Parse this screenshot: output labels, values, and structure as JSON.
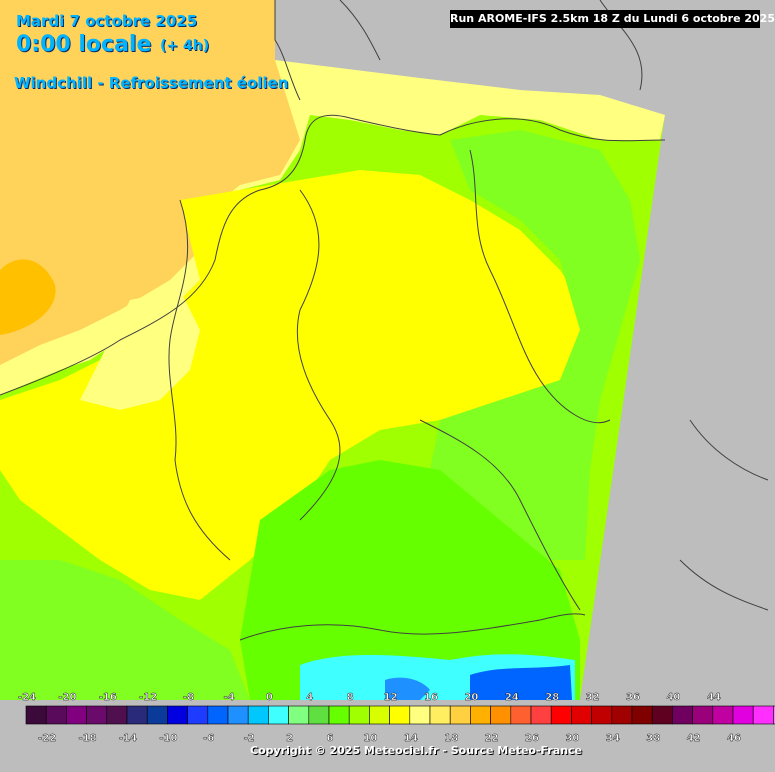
{
  "header": {
    "date": "Mardi 7 octobre 2025",
    "time": "0:00 locale",
    "lead": "(+ 4h)",
    "title": "Windchill - Refroissement éolien",
    "run": "Run AROME-IFS 2.5km 18 Z du Lundi 6 octobre 2025"
  },
  "legend": {
    "top_labels": [
      "-24",
      "-20",
      "-16",
      "-12",
      "-8",
      "-4",
      "0",
      "4",
      "8",
      "12",
      "16",
      "20",
      "24",
      "28",
      "32",
      "36",
      "40",
      "44"
    ],
    "bottom_labels": [
      "-22",
      "-18",
      "-14",
      "-10",
      "-6",
      "-2",
      "2",
      "6",
      "10",
      "14",
      "18",
      "22",
      "26",
      "30",
      "34",
      "38",
      "42",
      "46"
    ],
    "colors": [
      "#3b0a3b",
      "#5a0a5a",
      "#800080",
      "#6a0a6a",
      "#501050",
      "#2a2a7a",
      "#0a3a9a",
      "#0000e0",
      "#1e3cff",
      "#0064ff",
      "#1e90ff",
      "#00c8ff",
      "#40ffff",
      "#80ff80",
      "#60e040",
      "#66ff00",
      "#a0ff00",
      "#d8ff00",
      "#ffff00",
      "#ffff80",
      "#ffee60",
      "#ffd040",
      "#ffb000",
      "#ff9000",
      "#ff6030",
      "#ff4040",
      "#ff0000",
      "#e00000",
      "#c00000",
      "#a00000",
      "#800000",
      "#600020",
      "#700060",
      "#9a007a",
      "#c000a0",
      "#e000e0",
      "#ff30ff",
      "#ff80ff"
    ]
  },
  "copyright": "Copyright © 2025 Meteociel.fr - Source Meteo-France",
  "map": {
    "colors": {
      "nodata": "#bdbdbd",
      "yellow": "#ffff00",
      "lightyellow": "#ffff80",
      "seaorange": "#ffd25a",
      "deeporange": "#ffc000",
      "green": "#66ff00",
      "lime": "#a0ff00",
      "chartreuse": "#80ff20",
      "aqua": "#40ffff",
      "blue": "#0064ff",
      "border": "#404040"
    }
  }
}
